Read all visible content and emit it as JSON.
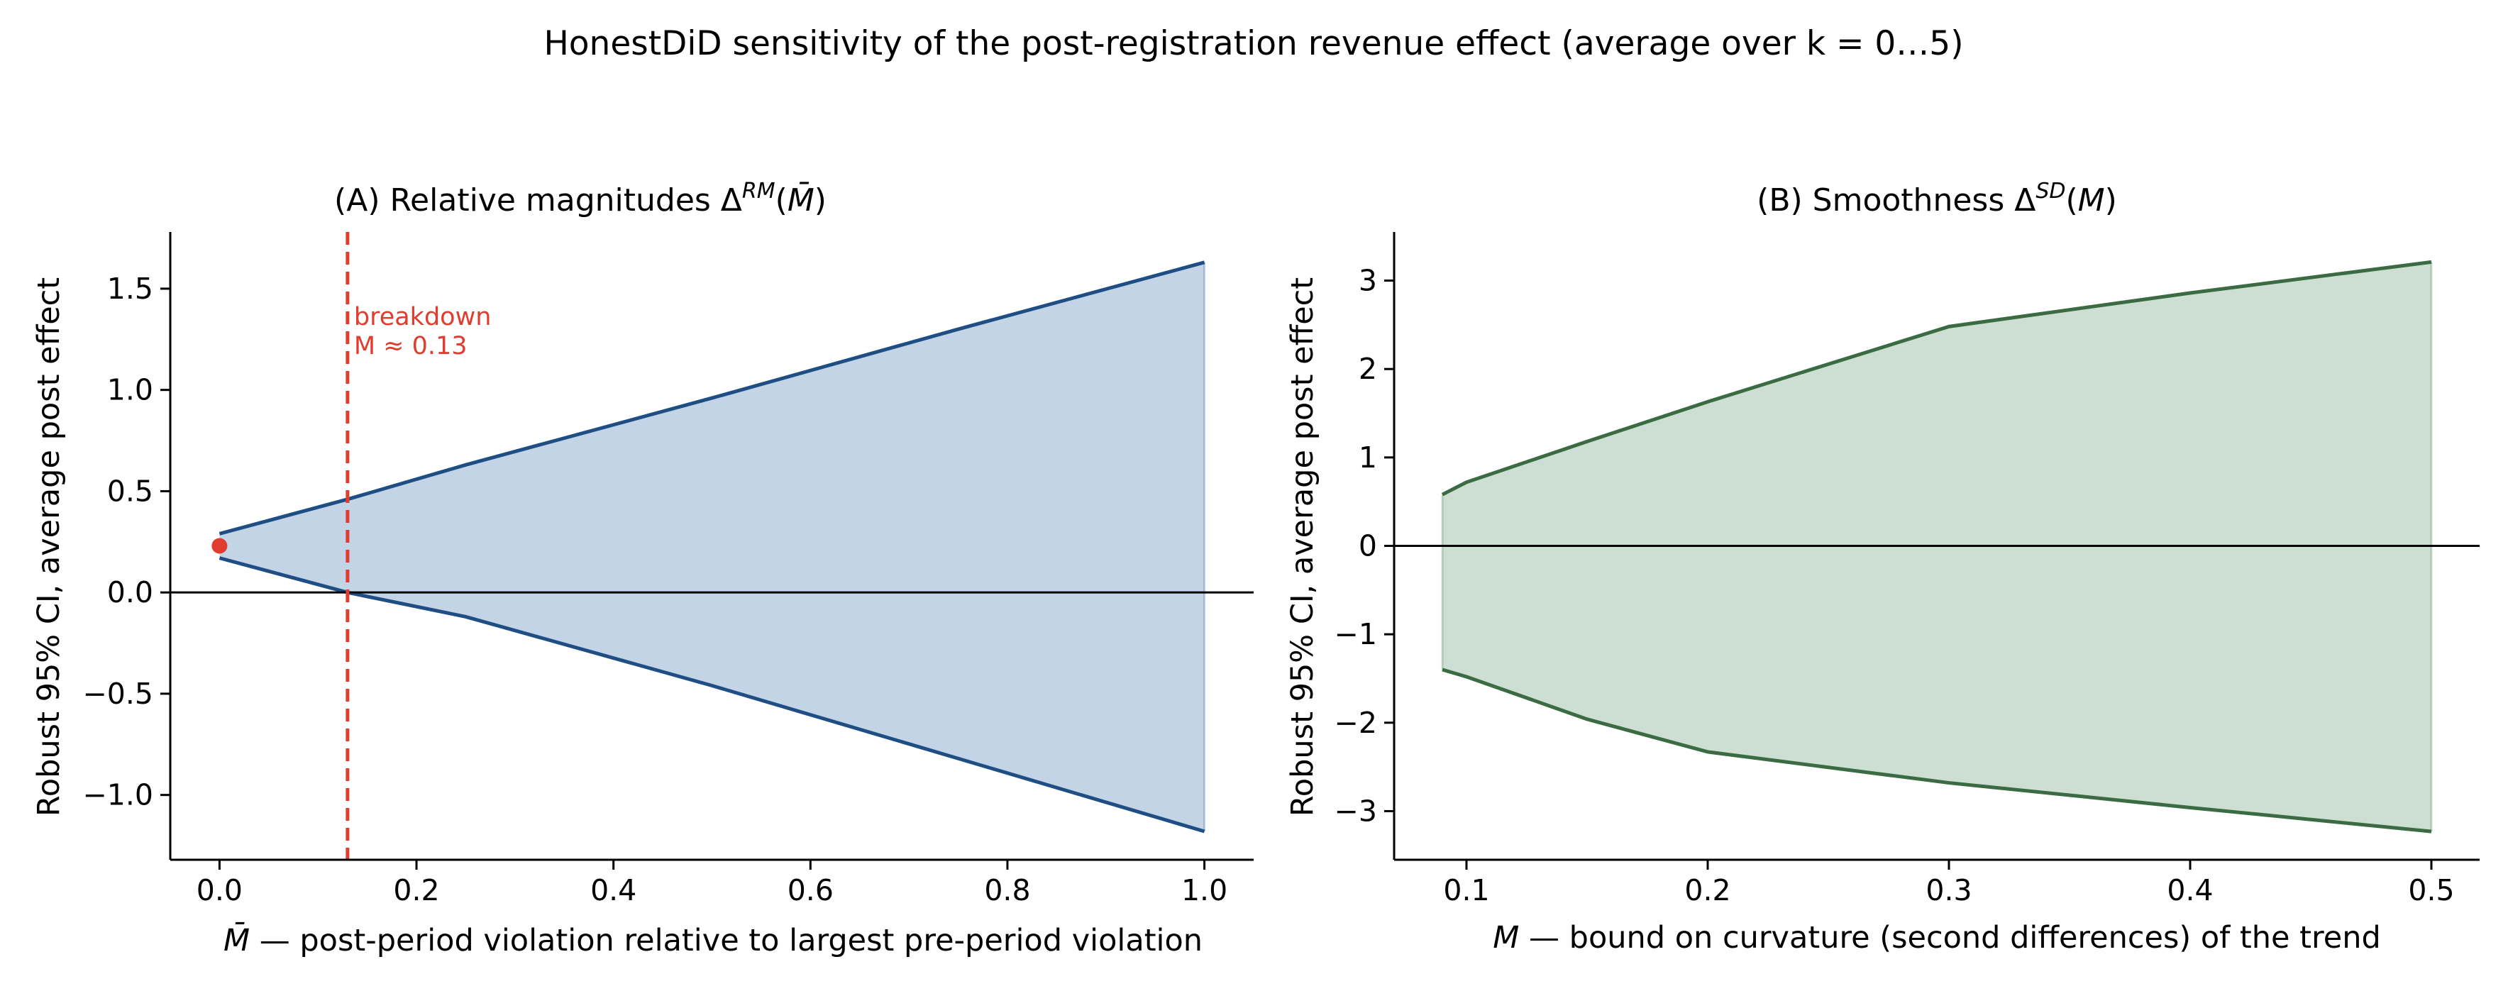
{
  "suptitle": "HonestDiD sensitivity of the post-registration revenue effect (average over k = 0…5)",
  "chart_data": [
    {
      "panel": "A",
      "type": "area",
      "title_main": "(A) Relative magnitudes  Δ",
      "title_sup": "RM",
      "title_arg_open": "(",
      "title_arg": "M̄",
      "title_arg_close": ")",
      "xlabel_sym": "M̄",
      "xlabel": " — post-period violation relative to largest pre-period violation",
      "ylabel": "Robust 95% CI, average post effect",
      "xlim": [
        -0.05,
        1.05
      ],
      "ylim": [
        -1.32,
        1.78
      ],
      "xticks": [
        0.0,
        0.2,
        0.4,
        0.6,
        0.8,
        1.0
      ],
      "xtick_labels": [
        "0.0",
        "0.2",
        "0.4",
        "0.6",
        "0.8",
        "1.0"
      ],
      "yticks": [
        -1.0,
        -0.5,
        0.0,
        0.5,
        1.0,
        1.5
      ],
      "ytick_labels": [
        "−1.0",
        "−0.5",
        "0.0",
        "0.5",
        "1.0",
        "1.5"
      ],
      "x": [
        0.0,
        0.13,
        0.25,
        0.5,
        0.75,
        1.0
      ],
      "upper": [
        0.29,
        0.46,
        0.63,
        0.96,
        1.3,
        1.63
      ],
      "lower": [
        0.17,
        0.0,
        -0.12,
        -0.46,
        -0.82,
        -1.18
      ],
      "point_estimate": {
        "x": 0.0,
        "y": 0.23
      },
      "breakdown": {
        "x": 0.13,
        "label_line1": "breakdown",
        "label_line2": "M ≈ 0.13"
      },
      "hline": 0.0,
      "line_color": "#1f4e84",
      "fill_color": "#c2d4e6",
      "breakdown_color": "#e03c2f",
      "grid": false
    },
    {
      "panel": "B",
      "type": "area",
      "title_main": "(B) Smoothness  Δ",
      "title_sup": "SD",
      "title_arg_open": "(",
      "title_arg": "M",
      "title_arg_close": ")",
      "xlabel_sym": "M",
      "xlabel": " — bound on curvature (second differences) of the trend",
      "ylabel": "Robust 95% CI, average post effect",
      "xlim": [
        0.07,
        0.52
      ],
      "ylim": [
        -3.55,
        3.55
      ],
      "xticks": [
        0.1,
        0.2,
        0.3,
        0.4,
        0.5
      ],
      "xtick_labels": [
        "0.1",
        "0.2",
        "0.3",
        "0.4",
        "0.5"
      ],
      "yticks": [
        -3,
        -2,
        -1,
        0,
        1,
        2,
        3
      ],
      "ytick_labels": [
        "−3",
        "−2",
        "−1",
        "0",
        "1",
        "2",
        "3"
      ],
      "x": [
        0.09,
        0.1,
        0.15,
        0.2,
        0.3,
        0.4,
        0.5
      ],
      "upper": [
        0.58,
        0.72,
        1.18,
        1.63,
        2.48,
        2.86,
        3.21
      ],
      "lower": [
        -1.4,
        -1.48,
        -1.96,
        -2.33,
        -2.68,
        -2.96,
        -3.23
      ],
      "hline": 0.0,
      "line_color": "#3a6b42",
      "fill_color": "#ccdfd2",
      "grid": false
    }
  ]
}
